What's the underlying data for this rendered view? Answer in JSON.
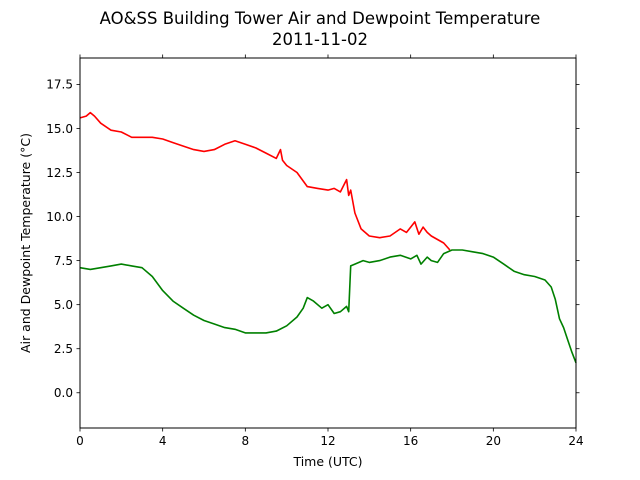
{
  "chart_data": {
    "type": "line",
    "title": "AO&SS Building Tower Air and Dewpoint Temperature",
    "subtitle": "2011-11-02",
    "xlabel": "Time (UTC)",
    "ylabel": "Air and Dewpoint Temperature (°C)",
    "xlim": [
      0,
      24
    ],
    "ylim": [
      -2,
      19
    ],
    "xticks": [
      0,
      4,
      8,
      12,
      16,
      20,
      24
    ],
    "xtick_labels": [
      "0",
      "4",
      "8",
      "12",
      "16",
      "20",
      "24"
    ],
    "yticks": [
      0.0,
      2.5,
      5.0,
      7.5,
      10.0,
      12.5,
      15.0,
      17.5
    ],
    "ytick_labels": [
      "0.0",
      "2.5",
      "5.0",
      "7.5",
      "10.0",
      "12.5",
      "15.0",
      "17.5"
    ],
    "grid": false,
    "series": [
      {
        "color": "#ff0000",
        "x": [
          0,
          0.3,
          0.5,
          0.7,
          1.0,
          1.5,
          2.0,
          2.5,
          3.0,
          3.5,
          4.0,
          4.5,
          5.0,
          5.5,
          6.0,
          6.5,
          7.0,
          7.5,
          8.0,
          8.5,
          9.0,
          9.5,
          9.7,
          9.8,
          10.0,
          10.5,
          11.0,
          11.5,
          12.0,
          12.3,
          12.6,
          12.9,
          13.0,
          13.1,
          13.3,
          13.6,
          14.0,
          14.5,
          15.0,
          15.5,
          15.8,
          16.0,
          16.2,
          16.4,
          16.6,
          16.8,
          17.0,
          17.3,
          17.6,
          17.9
        ],
        "y": [
          15.6,
          15.7,
          15.9,
          15.7,
          15.3,
          14.9,
          14.8,
          14.5,
          14.5,
          14.5,
          14.4,
          14.2,
          14.0,
          13.8,
          13.7,
          13.8,
          14.1,
          14.3,
          14.1,
          13.9,
          13.6,
          13.3,
          13.8,
          13.2,
          12.9,
          12.5,
          11.7,
          11.6,
          11.5,
          11.6,
          11.4,
          12.1,
          11.2,
          11.5,
          10.2,
          9.3,
          8.9,
          8.8,
          8.9,
          9.3,
          9.1,
          9.4,
          9.7,
          9.0,
          9.4,
          9.1,
          8.9,
          8.7,
          8.5,
          8.1
        ]
      },
      {
        "color": "#008000",
        "x": [
          0,
          0.5,
          1.0,
          1.5,
          2.0,
          2.5,
          3.0,
          3.5,
          4.0,
          4.5,
          5.0,
          5.5,
          6.0,
          6.5,
          7.0,
          7.5,
          8.0,
          8.5,
          9.0,
          9.5,
          10.0,
          10.5,
          10.8,
          11.0,
          11.3,
          11.7,
          12.0,
          12.3,
          12.6,
          12.9,
          13.0,
          13.1,
          13.3,
          13.7,
          14.0,
          14.5,
          15.0,
          15.5,
          16.0,
          16.3,
          16.5,
          16.8,
          17.0,
          17.3,
          17.6,
          18.0,
          18.5,
          19.0,
          19.5,
          20.0,
          20.5,
          21.0,
          21.5,
          22.0,
          22.5,
          22.8,
          23.0,
          23.2,
          23.4,
          23.6,
          23.8,
          24.0
        ],
        "y": [
          7.1,
          7.0,
          7.1,
          7.2,
          7.3,
          7.2,
          7.1,
          6.6,
          5.8,
          5.2,
          4.8,
          4.4,
          4.1,
          3.9,
          3.7,
          3.6,
          3.4,
          3.4,
          3.4,
          3.5,
          3.8,
          4.3,
          4.8,
          5.4,
          5.2,
          4.8,
          5.0,
          4.5,
          4.6,
          4.9,
          4.6,
          7.2,
          7.3,
          7.5,
          7.4,
          7.5,
          7.7,
          7.8,
          7.6,
          7.8,
          7.3,
          7.7,
          7.5,
          7.4,
          7.9,
          8.1,
          8.1,
          8.0,
          7.9,
          7.7,
          7.3,
          6.9,
          6.7,
          6.6,
          6.4,
          6.0,
          5.3,
          4.2,
          3.7,
          3.0,
          2.3,
          1.7
        ]
      }
    ]
  }
}
